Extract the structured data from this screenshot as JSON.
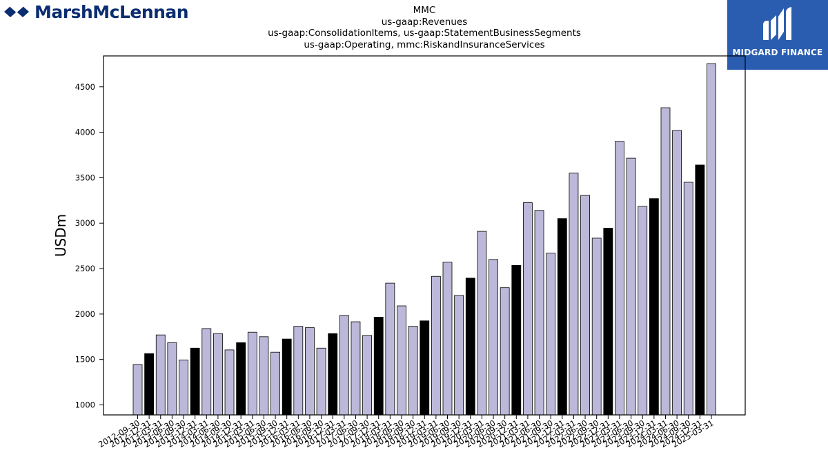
{
  "header": {
    "left_logo": {
      "text": "MarshMcLennan",
      "icon": "marshmclennan-logo-icon",
      "color": "#0b2d71"
    },
    "right_logo": {
      "text": "MIDGARD FINANCE",
      "icon": "midgard-logo-icon",
      "bg": "#2a5db0"
    }
  },
  "chart_data": {
    "type": "bar",
    "title_lines": [
      "MMC",
      "us-gaap:Revenues",
      "us-gaap:ConsolidationItems, us-gaap:StatementBusinessSegments",
      "us-gaap:Operating, mmc:RiskandInsuranceServices"
    ],
    "ylabel": "USDm",
    "xlabel": "",
    "ylim": [
      890,
      4840
    ],
    "yticks": [
      1000,
      1500,
      2000,
      2500,
      3000,
      3500,
      4000,
      4500
    ],
    "colors": {
      "default": "#bcb8d9",
      "q4": "#000000",
      "edge": "#000000"
    },
    "categories": [
      "2012-09-30",
      "2012-12-31",
      "2013-03-31",
      "2013-06-30",
      "2013-09-30",
      "2013-12-31",
      "2014-03-31",
      "2014-06-30",
      "2014-09-30",
      "2014-12-31",
      "2015-03-31",
      "2015-06-30",
      "2015-09-30",
      "2015-12-31",
      "2016-03-31",
      "2016-06-30",
      "2016-09-30",
      "2016-12-31",
      "2017-03-31",
      "2017-06-30",
      "2017-09-30",
      "2017-12-31",
      "2018-03-31",
      "2018-06-30",
      "2018-09-30",
      "2018-12-31",
      "2019-03-31",
      "2019-06-30",
      "2019-09-30",
      "2019-12-31",
      "2020-03-31",
      "2020-06-30",
      "2020-09-30",
      "2020-12-31",
      "2021-03-31",
      "2021-06-30",
      "2021-09-30",
      "2021-12-31",
      "2022-03-31",
      "2022-06-30",
      "2022-09-30",
      "2022-12-31",
      "2023-03-31",
      "2023-06-30",
      "2023-09-30",
      "2023-12-31",
      "2024-03-31",
      "2024-06-30",
      "2024-09-30",
      "2024-12-31",
      "2025-03-31"
    ],
    "values": [
      1445,
      1565,
      1770,
      1685,
      1495,
      1625,
      1840,
      1785,
      1605,
      1685,
      1800,
      1750,
      1580,
      1725,
      1865,
      1850,
      1625,
      1785,
      1985,
      1915,
      1765,
      1965,
      2340,
      2090,
      1865,
      1925,
      2415,
      2570,
      2205,
      2395,
      2910,
      2600,
      2290,
      2535,
      3225,
      3140,
      2670,
      3050,
      3550,
      3305,
      2835,
      2945,
      3900,
      3715,
      3185,
      3270,
      4270,
      4020,
      3450,
      3640,
      4755
    ]
  }
}
